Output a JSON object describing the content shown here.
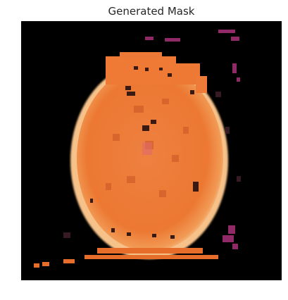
{
  "figure": {
    "title": "Generated Mask"
  },
  "image": {
    "description_icon": "generated-mask-image",
    "colors": {
      "background": "#000000",
      "fill_main": "#ee7a35",
      "fill_dark": "#d9652a",
      "rim": "#f6c48a",
      "magenta_speckle": "#a8327a"
    }
  }
}
